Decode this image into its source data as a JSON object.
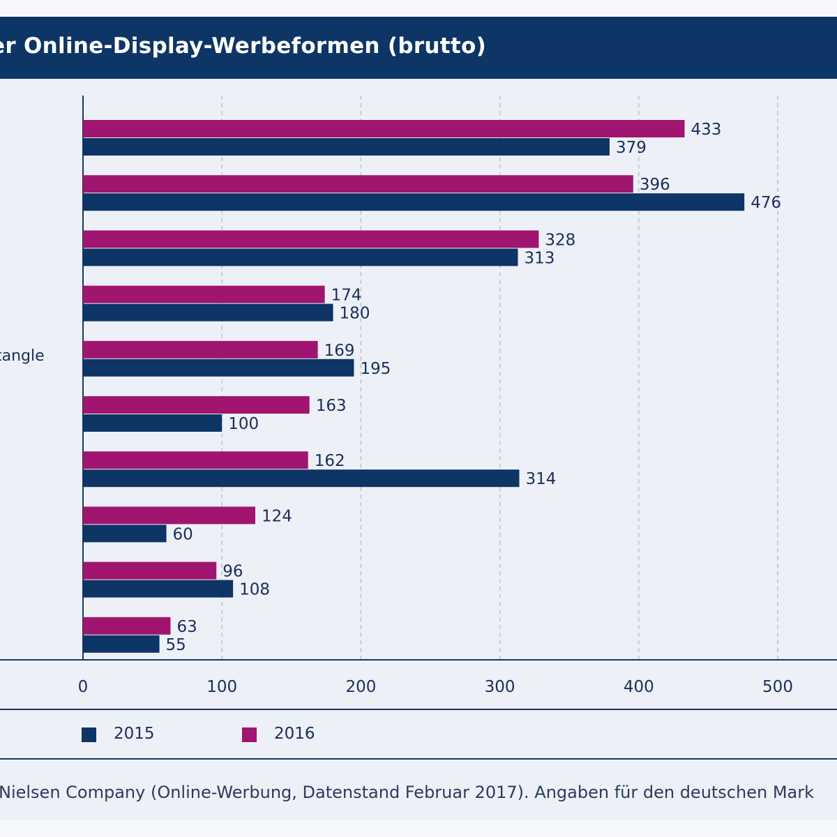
{
  "colors": {
    "series_2015": "#0d3565",
    "series_2016": "#a0156f",
    "title_bar": "#0d3565",
    "panel_bg": "#edf0f6",
    "grid": "#b7bdc9"
  },
  "header": {
    "title": "er Online-Display-Werbeformen (brutto)"
  },
  "labels": {
    "partial_category": "tangle"
  },
  "footer": {
    "source": "Nielsen Company (Online-Werbung, Datenstand Februar 2017). Angaben für den deutschen Mark"
  },
  "chart_data": {
    "type": "bar",
    "orientation": "horizontal",
    "title": "er Online-Display-Werbeformen (brutto)",
    "xlim": [
      0,
      500
    ],
    "x_ticks": [
      "0",
      "100",
      "200",
      "300",
      "400",
      "500"
    ],
    "grid": "vertical dashed",
    "legend_position": "bottom",
    "categories": [
      "",
      "",
      "",
      "",
      "tangle",
      "",
      "",
      "",
      "",
      ""
    ],
    "series": [
      {
        "name": "2016",
        "values": [
          433,
          396,
          328,
          174,
          169,
          163,
          162,
          124,
          96,
          63
        ]
      },
      {
        "name": "2015",
        "values": [
          379,
          476,
          313,
          180,
          195,
          100,
          314,
          60,
          108,
          55
        ]
      }
    ]
  }
}
